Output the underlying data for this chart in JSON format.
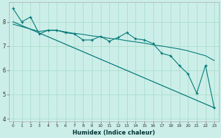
{
  "xlabel": "Humidex (Indice chaleur)",
  "bg_color": "#cceee8",
  "line_color": "#007878",
  "grid_color": "#aaddcc",
  "xlim": [
    -0.5,
    23.5
  ],
  "ylim": [
    3.9,
    8.8
  ],
  "xticks": [
    0,
    1,
    2,
    3,
    4,
    5,
    6,
    7,
    8,
    9,
    10,
    11,
    12,
    13,
    14,
    15,
    16,
    17,
    18,
    19,
    20,
    21,
    22,
    23
  ],
  "yticks": [
    4,
    5,
    6,
    7,
    8
  ],
  "line1_x": [
    0,
    1,
    2,
    3,
    4,
    5,
    6,
    7,
    8,
    9,
    10,
    11,
    12,
    13,
    14,
    15,
    16,
    17,
    18,
    19,
    20,
    21,
    22,
    23
  ],
  "line1_y": [
    8.55,
    8.0,
    8.2,
    7.5,
    7.65,
    7.65,
    7.55,
    7.5,
    7.25,
    7.25,
    7.4,
    7.2,
    7.35,
    7.55,
    7.3,
    7.25,
    7.1,
    6.7,
    6.6,
    6.2,
    5.85,
    5.05,
    6.2,
    4.45
  ],
  "line2_x": [
    0,
    23
  ],
  "line2_y": [
    8.0,
    4.45
  ],
  "line3_x": [
    0,
    3,
    4,
    5,
    6,
    7,
    8,
    9,
    10,
    11,
    12,
    13,
    14,
    15,
    16,
    17,
    18,
    19,
    20,
    21,
    22,
    23
  ],
  "line3_y": [
    7.9,
    7.6,
    7.65,
    7.65,
    7.58,
    7.52,
    7.48,
    7.42,
    7.38,
    7.32,
    7.28,
    7.22,
    7.17,
    7.12,
    7.05,
    7.0,
    6.94,
    6.88,
    6.8,
    6.7,
    6.6,
    6.4
  ]
}
